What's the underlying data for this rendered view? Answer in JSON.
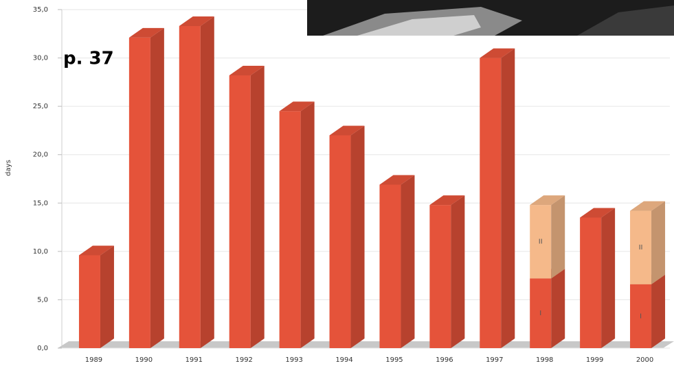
{
  "chart_data": {
    "type": "bar",
    "stacked": true,
    "annotation": "p. 37",
    "y_label": "days",
    "categories": [
      "1989",
      "1990",
      "1991",
      "1992",
      "1993",
      "1994",
      "1995",
      "1996",
      "1997",
      "1998",
      "1999",
      "2000"
    ],
    "series": [
      {
        "name": "I",
        "color": "#e5533a",
        "values": [
          9.6,
          32.1,
          33.3,
          28.2,
          24.5,
          22.0,
          16.9,
          14.8,
          30.0,
          7.2,
          13.5,
          6.6
        ]
      },
      {
        "name": "II",
        "color": "#f5b98a",
        "values": [
          null,
          null,
          null,
          null,
          null,
          null,
          null,
          null,
          null,
          7.6,
          null,
          7.6
        ]
      }
    ],
    "ylim": [
      0,
      35
    ],
    "yticks": [
      {
        "value": 0,
        "label": "0,0"
      },
      {
        "value": 5,
        "label": "5,0"
      },
      {
        "value": 10,
        "label": "10,0"
      },
      {
        "value": 15,
        "label": "15,0"
      },
      {
        "value": 20,
        "label": "20,0"
      },
      {
        "value": 25,
        "label": "25,0"
      },
      {
        "value": 30,
        "label": "30,0"
      },
      {
        "value": 35,
        "label": "35,0"
      }
    ],
    "grid": true
  }
}
